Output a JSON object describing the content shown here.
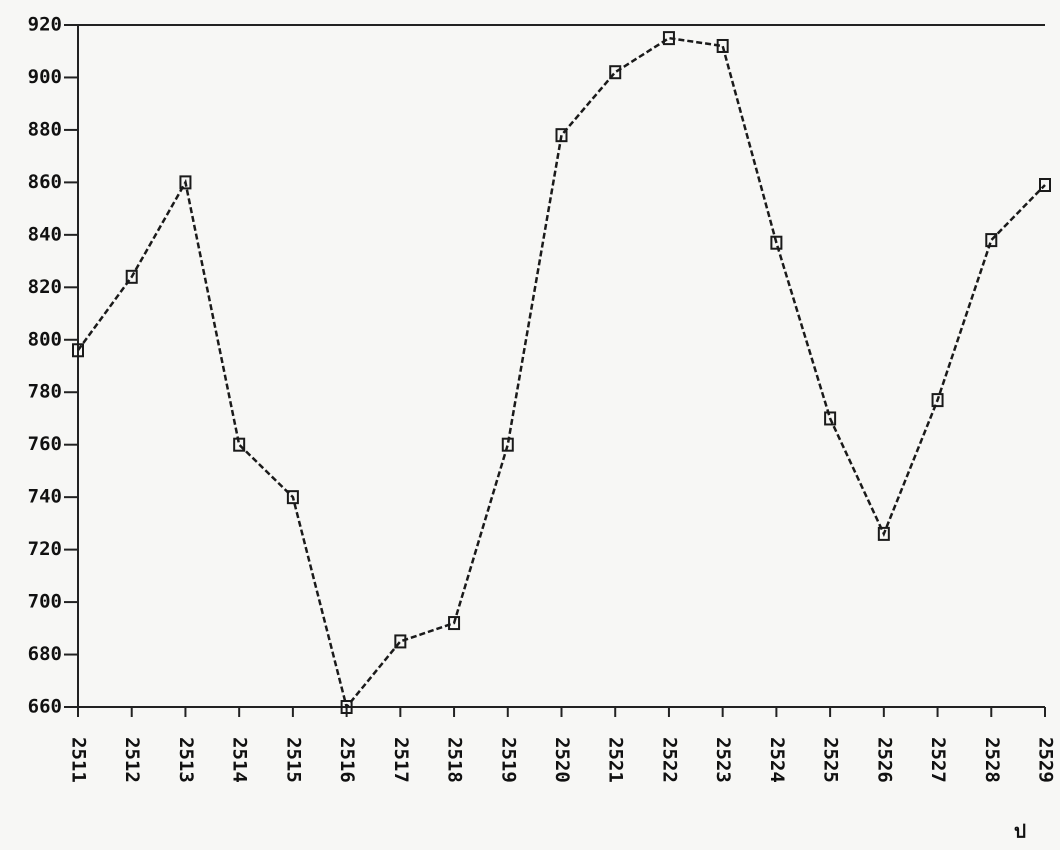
{
  "chart_data": {
    "type": "line",
    "x_label": "ป",
    "x": [
      2511,
      2512,
      2513,
      2514,
      2515,
      2516,
      2517,
      2518,
      2519,
      2520,
      2521,
      2522,
      2523,
      2524,
      2525,
      2526,
      2527,
      2528,
      2529
    ],
    "series": [
      {
        "color": "#1a1a1a",
        "values": [
          796,
          824,
          860,
          760,
          740,
          660,
          685,
          692,
          760,
          878,
          902,
          915,
          912,
          837,
          770,
          726,
          777,
          838,
          859
        ]
      }
    ],
    "xlim": [
      2511,
      2529
    ],
    "xticks": [
      2511,
      2512,
      2513,
      2514,
      2515,
      2516,
      2517,
      2518,
      2519,
      2520,
      2521,
      2522,
      2523,
      2524,
      2525,
      2526,
      2527,
      2528,
      2529
    ],
    "ylim": [
      660,
      920
    ],
    "yticks": [
      660,
      680,
      700,
      720,
      740,
      760,
      780,
      800,
      820,
      840,
      860,
      880,
      900,
      920
    ],
    "marker": "square",
    "dash": "6 3",
    "grid": false
  }
}
